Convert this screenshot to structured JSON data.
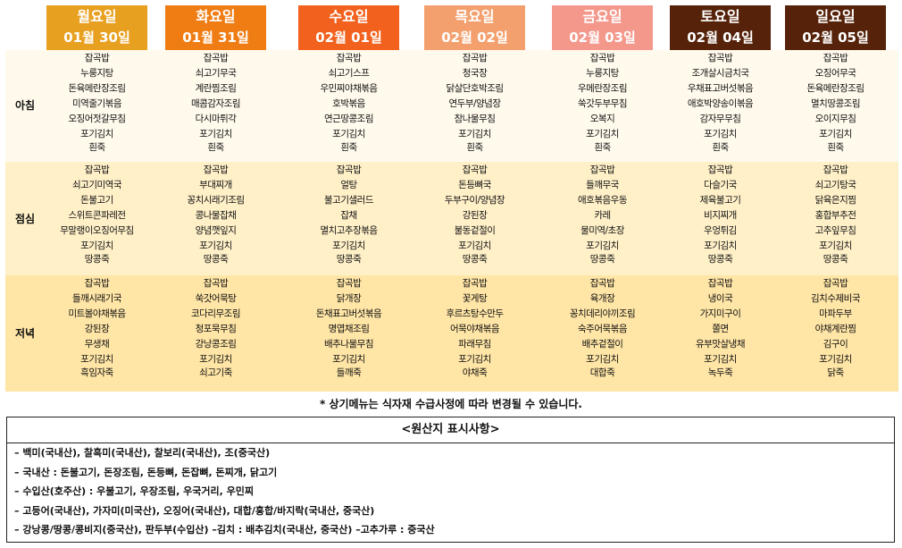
{
  "days": [
    {
      "name": "월요일",
      "date": "01월 30일",
      "color": "#e8a020"
    },
    {
      "name": "화요일",
      "date": "01월 31일",
      "color": "#f07d14"
    },
    {
      "name": "수요일",
      "date": "02월 01일",
      "color": "#f2621e"
    },
    {
      "name": "목요일",
      "date": "02월 02일",
      "color": "#f4a06e"
    },
    {
      "name": "금요일",
      "date": "02월 03일",
      "color": "#f4988c"
    },
    {
      "name": "토요일",
      "date": "02월 04일",
      "color": "#56230a"
    },
    {
      "name": "일요일",
      "date": "02월 05일",
      "color": "#56230a"
    }
  ],
  "meals": [
    {
      "label": "아침",
      "menus": [
        [
          "잡곡밥",
          "누룽지탕",
          "돈육메란장조림",
          "미역줄기볶음",
          "오징어젓갈무침",
          "포기김치",
          "흰죽"
        ],
        [
          "잡곡밥",
          "쇠고기무국",
          "계란찜조림",
          "매콤감자조림",
          "다시마튀각",
          "포기김치",
          "흰죽"
        ],
        [
          "잡곡밥",
          "쇠고기스프",
          "우민찌야채볶음",
          "호박볶음",
          "연근땅콩조림",
          "포기김치",
          "흰죽"
        ],
        [
          "잡곡밥",
          "청국장",
          "닭살단호박조림",
          "연두부/양념장",
          "참나물무침",
          "포기김치",
          "흰죽"
        ],
        [
          "잡곡밥",
          "누룽지탕",
          "우메란장조림",
          "쑥갓두부무침",
          "오복지",
          "포기김치",
          "흰죽"
        ],
        [
          "잡곡밥",
          "조개살시금치국",
          "우채표고버섯볶음",
          "애호박양송이볶음",
          "감자무무침",
          "포기김치",
          "흰죽"
        ],
        [
          "잡곡밥",
          "오징어무국",
          "돈육메란장조림",
          "멸치땅콩조림",
          "오이지무침",
          "포기김치",
          "흰죽"
        ]
      ]
    },
    {
      "label": "점심",
      "menus": [
        [
          "잡곡밥",
          "쇠고기미역국",
          "돈불고기",
          "스위트콘파레전",
          "무말랭이오징어무침",
          "포기김치",
          "땅콩죽"
        ],
        [
          "잡곡밥",
          "부대찌개",
          "꽁치시래기조림",
          "콩나물잡채",
          "양념깻잎지",
          "포기김치",
          "땅콩죽"
        ],
        [
          "잡곡밥",
          "얼탕",
          "불고기샐러드",
          "잡채",
          "멸치고추장볶음",
          "포기김치",
          "땅콩죽"
        ],
        [
          "잡곡밥",
          "돈등뼈국",
          "두부구이/양념장",
          "강된장",
          "불동겉절이",
          "포기김치",
          "땅콩죽"
        ],
        [
          "잡곡밥",
          "들깨무국",
          "애호볶음우동",
          "카레",
          "물미역/초장",
          "포기김치",
          "땅콩죽"
        ],
        [
          "잡곡밥",
          "다슬기국",
          "제육불고기",
          "비지찌개",
          "우엉튀김",
          "포기김치",
          "땅콩죽"
        ],
        [
          "잡곡밥",
          "쇠고기탕국",
          "닭육은지찜",
          "홍합부추전",
          "고추잎무침",
          "포기김치",
          "땅콩죽"
        ]
      ]
    },
    {
      "label": "저녁",
      "menus": [
        [
          "잡곡밥",
          "들깨시래기국",
          "미트볼야채볶음",
          "강된장",
          "무생채",
          "포기김치",
          "흑임자죽"
        ],
        [
          "잡곡밥",
          "쑥갓어묵탕",
          "코다리무조림",
          "청포묵무침",
          "강낭콩조림",
          "포기김치",
          "쇠고기죽"
        ],
        [
          "잡곡밥",
          "닭개장",
          "돈채표고버섯볶음",
          "명엽채조림",
          "배추나물무침",
          "포기김치",
          "들깨죽"
        ],
        [
          "잡곡밥",
          "꽃게탕",
          "후르츠탕수만두",
          "어묵야채볶음",
          "파래무침",
          "포기김치",
          "야채죽"
        ],
        [
          "잡곡밥",
          "육개장",
          "꽁치데리야끼조림",
          "숙주어묵볶음",
          "배추겉절이",
          "포기김치",
          "대합죽"
        ],
        [
          "잡곡밥",
          "냉이국",
          "가지미구이",
          "쫄면",
          "유부맛살냉채",
          "포기김치",
          "녹두죽"
        ],
        [
          "잡곡밥",
          "김치수제비국",
          "마파두부",
          "야채계란찜",
          "김구이",
          "포기김치",
          "닭죽"
        ]
      ]
    }
  ],
  "notice": "* 상기메뉴는 식자재 수급사정에 따라 변경될 수 있습니다.",
  "origin": {
    "title": "<원산지 표시사항>",
    "lines": [
      "– 백미(국내산), 찰흑미(국내산), 찰보리(국내산), 조(중국산)",
      "– 국내산 : 돈불고기, 돈장조림, 돈등뼈, 돈잡뼈, 돈찌개, 닭고기",
      "– 수입산(호주산) : 우불고기, 우장조림, 우국거리, 우민찌",
      "– 고등어(국내산), 가자미(미국산), 오징어(국내산), 대합/홍합/바지락(국내산, 중국산)",
      "– 강낭콩/땅콩/콩비지(중국산), 판두부(수입산)   –김치 : 배추김치(국내산, 중국산)    –고추가루 : 중국산"
    ]
  }
}
